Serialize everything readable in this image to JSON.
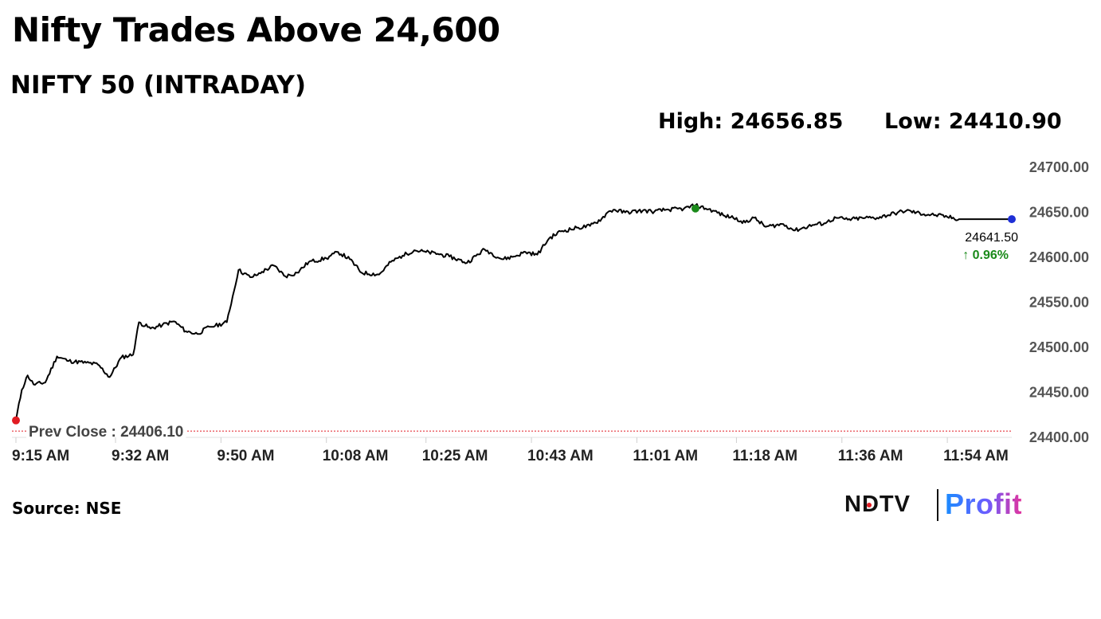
{
  "headline": "Nifty Trades Above 24,600",
  "stats": {
    "high": "High: 24656.85",
    "low": "Low: 24410.90"
  },
  "source": "Source: NSE",
  "logo": {
    "brand": "NDTV",
    "sub": "Profit"
  },
  "colors": {
    "line": "#000000",
    "open_marker": "#e11b22",
    "high_marker": "#1a8a1a",
    "last_marker": "#1e2fd6",
    "prev_close_line": "#e11b22",
    "change_positive": "#1a8a1a"
  },
  "chart_data": {
    "type": "line",
    "title": "NIFTY 50 (INTRADAY)",
    "xlabel": "",
    "ylabel": "",
    "ylim": [
      24400,
      24700
    ],
    "y_ticks": [
      "24400.00",
      "24450.00",
      "24500.00",
      "24550.00",
      "24600.00",
      "24650.00",
      "24700.00"
    ],
    "x_ticks": [
      "9:15 AM",
      "9:32 AM",
      "9:50 AM",
      "10:08 AM",
      "10:25 AM",
      "10:43 AM",
      "11:01 AM",
      "11:18 AM",
      "11:36 AM",
      "11:54 AM"
    ],
    "x_range": [
      "9:15 AM",
      "12:05 PM"
    ],
    "grid": false,
    "series": [
      {
        "x": [
          "9:15",
          "9:16",
          "9:17",
          "9:18",
          "9:20",
          "9:22",
          "9:24",
          "9:27",
          "9:29",
          "9:31",
          "9:33",
          "9:35",
          "9:36",
          "9:38",
          "9:40",
          "9:42",
          "9:44",
          "9:46",
          "9:48",
          "9:49",
          "9:51",
          "9:53",
          "9:55",
          "9:56",
          "9:57",
          "9:59",
          "10:01",
          "10:03",
          "10:05",
          "10:08",
          "10:10",
          "10:12",
          "10:14",
          "10:17",
          "10:19",
          "10:21",
          "10:23",
          "10:25",
          "10:27",
          "10:29",
          "10:32",
          "10:35",
          "10:38",
          "10:40",
          "10:42",
          "10:44",
          "10:46",
          "10:48",
          "10:51",
          "10:53",
          "10:55",
          "10:56",
          "10:57",
          "10:59",
          "11:02",
          "11:04",
          "11:06",
          "11:09",
          "11:11",
          "11:14",
          "11:16",
          "11:18",
          "11:19",
          "11:21",
          "11:23",
          "11:26",
          "11:28",
          "11:31",
          "11:33",
          "11:35",
          "11:37",
          "11:40",
          "11:42",
          "11:45",
          "11:47",
          "11:50",
          "11:52",
          "11:54",
          "11:56",
          "11:58",
          "12:00",
          "12:02",
          "12:04",
          "12:05"
        ],
        "y": [
          24418,
          24452,
          24468,
          24458,
          24460,
          24489,
          24484,
          24482,
          24480,
          24466,
          24488,
          24491,
          24527,
          24520,
          24524,
          24528,
          24517,
          24514,
          24522,
          24523,
          24527,
          24585,
          24577,
          24579,
          24583,
          24590,
          24578,
          24582,
          24594,
          24598,
          24605,
          24597,
          24582,
          24580,
          24594,
          24601,
          24607,
          24605,
          24603,
          24600,
          24593,
          24608,
          24597,
          24600,
          24605,
          24602,
          24620,
          24628,
          24632,
          24634,
          24642,
          24649,
          24652,
          24649,
          24651,
          24650,
          24652,
          24653,
          24656.85,
          24651,
          24645,
          24643,
          24637,
          24643,
          24633,
          24636,
          24629,
          24635,
          24637,
          24643,
          24641,
          24643,
          24643,
          24648,
          24651,
          24647,
          24646,
          24644,
          24641.5,
          24641.5,
          24641.5,
          24641.5,
          24641.5,
          24641.5
        ],
        "markers": {
          "open": 24418,
          "high": 24656.85,
          "last": 24641.5
        }
      }
    ],
    "annotations": {
      "prev_close": "Prev Close : 24406.10",
      "last_value": "24641.50",
      "change": "↑ 0.96%"
    }
  }
}
